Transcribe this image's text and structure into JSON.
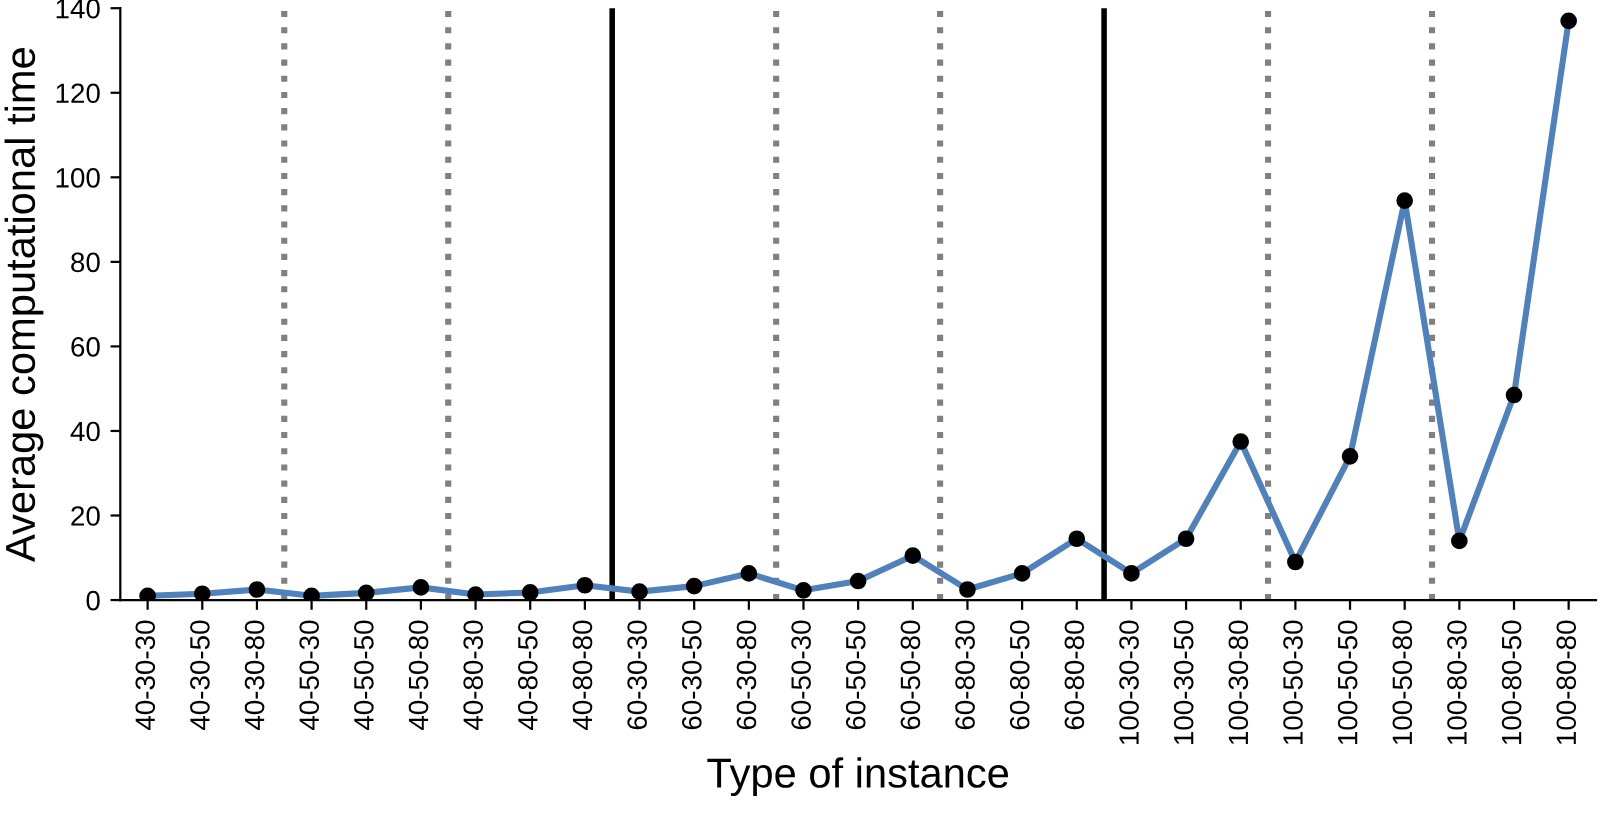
{
  "chart_data": {
    "type": "line",
    "xlabel": "Type of instance",
    "ylabel": "Average computational time",
    "categories": [
      "40-30-30",
      "40-30-50",
      "40-30-80",
      "40-50-30",
      "40-50-50",
      "40-50-80",
      "40-80-30",
      "40-80-50",
      "40-80-80",
      "60-30-30",
      "60-30-50",
      "60-30-80",
      "60-50-30",
      "60-50-50",
      "60-50-80",
      "60-80-30",
      "60-80-50",
      "60-80-80",
      "100-30-30",
      "100-30-50",
      "100-30-80",
      "100-50-30",
      "100-50-50",
      "100-50-80",
      "100-80-30",
      "100-80-50",
      "100-80-80"
    ],
    "series": [
      {
        "color": "#4f81bd",
        "values": [
          1,
          1.5,
          2.5,
          1,
          1.7,
          3,
          1.3,
          1.8,
          3.5,
          2,
          3.3,
          6.3,
          2.3,
          4.5,
          10.5,
          2.5,
          6.3,
          14.5,
          6.3,
          14.5,
          37.5,
          9,
          34,
          94.5,
          14,
          48.5,
          137
        ]
      }
    ],
    "ylim": [
      0,
      140
    ],
    "yticks": [
      0,
      20,
      40,
      60,
      80,
      100,
      120,
      140
    ],
    "grid": false,
    "legend": false,
    "marker": "circle",
    "line_style": "solid"
  }
}
